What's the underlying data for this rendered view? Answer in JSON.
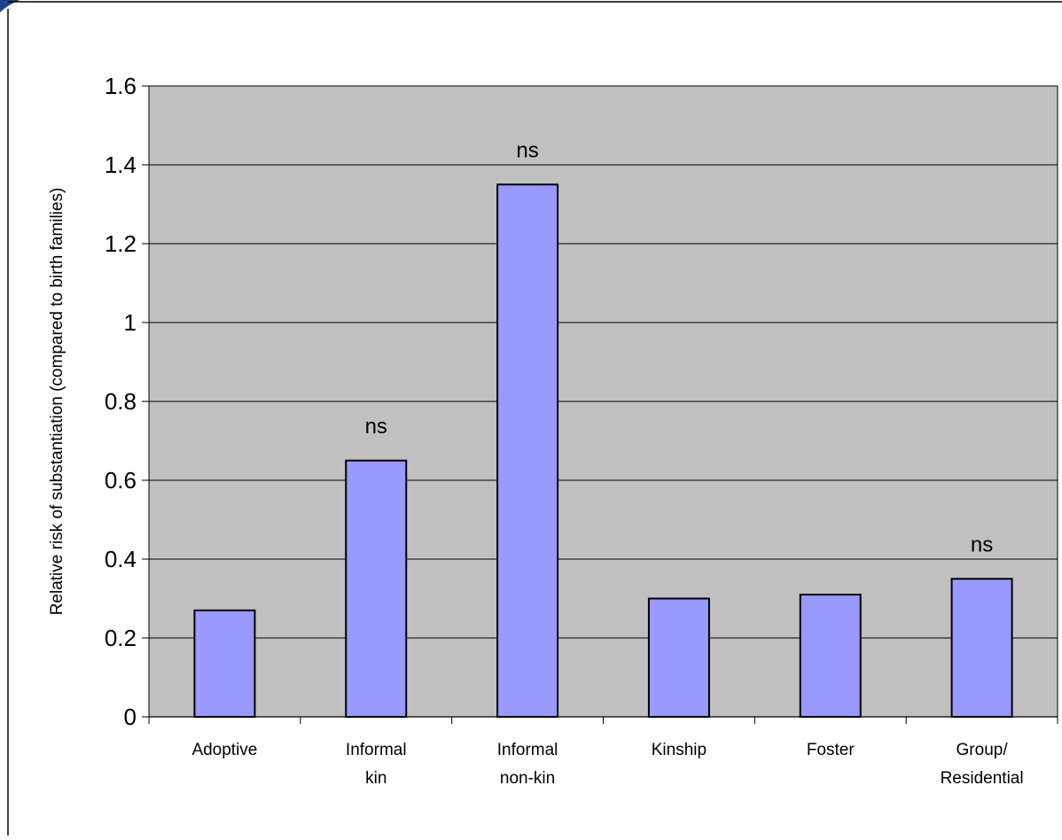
{
  "chart_data": {
    "type": "bar",
    "categories": [
      [
        "Adoptive"
      ],
      [
        "Informal",
        "kin"
      ],
      [
        "Informal",
        "non-kin"
      ],
      [
        "Kinship"
      ],
      [
        "Foster"
      ],
      [
        "Group/",
        "Residential"
      ]
    ],
    "values": [
      0.27,
      0.65,
      1.35,
      0.3,
      0.31,
      0.35
    ],
    "annotations": [
      "",
      "ns",
      "ns",
      "",
      "",
      "ns"
    ],
    "ylabel": "Relative risk of substantiation (compared to birth families)",
    "ylim": [
      0,
      1.6
    ],
    "yticks": [
      "0",
      "0.2",
      "0.4",
      "0.6",
      "0.8",
      "1",
      "1.2",
      "1.4",
      "1.6"
    ],
    "grid": true,
    "colors": {
      "bar_fill": "#9999ff",
      "plot_background": "#c0c0c0",
      "bar_stroke": "#000000"
    }
  }
}
